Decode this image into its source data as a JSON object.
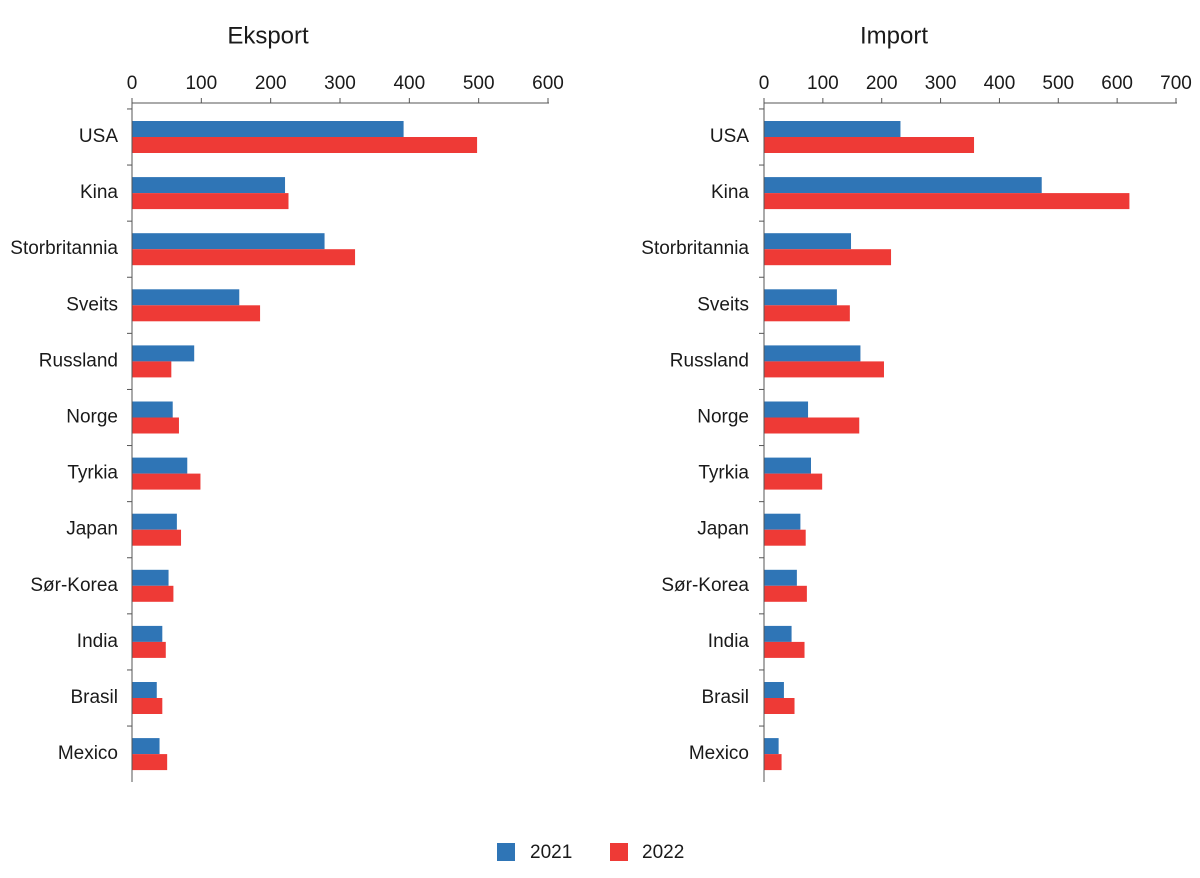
{
  "chart_data": [
    {
      "type": "bar",
      "orientation": "horizontal",
      "title": "Eksport",
      "xlim": [
        0,
        600
      ],
      "xticks": [
        0,
        100,
        200,
        300,
        400,
        500,
        600
      ],
      "tick_labels": [
        "0",
        "100",
        "200",
        "300",
        "400",
        "500",
        "600"
      ],
      "categories": [
        "USA",
        "Kina",
        "Storbritannia",
        "Sveits",
        "Russland",
        "Norge",
        "Tyrkia",
        "Japan",
        "Sør-Korea",
        "India",
        "Brasil",
        "Mexico"
      ],
      "series": [
        {
          "name": "2021",
          "color": "#2f75b6",
          "values": [
            391,
            220,
            277,
            154,
            89,
            58,
            79,
            64,
            52,
            43,
            35,
            39
          ]
        },
        {
          "name": "2022",
          "color": "#ee3a36",
          "values": [
            497,
            225,
            321,
            184,
            56,
            67,
            98,
            70,
            59,
            48,
            43,
            50
          ]
        }
      ]
    },
    {
      "type": "bar",
      "orientation": "horizontal",
      "title": "Import",
      "xlim": [
        0,
        700
      ],
      "xticks": [
        0,
        100,
        200,
        300,
        400,
        500,
        600,
        700
      ],
      "tick_labels": [
        "0",
        "100",
        "200",
        "300",
        "400",
        "500",
        "600",
        "700"
      ],
      "categories": [
        "USA",
        "Kina",
        "Storbritannia",
        "Sveits",
        "Russland",
        "Norge",
        "Tyrkia",
        "Japan",
        "Sør-Korea",
        "India",
        "Brasil",
        "Mexico"
      ],
      "series": [
        {
          "name": "2021",
          "color": "#2f75b6",
          "values": [
            231,
            471,
            147,
            123,
            163,
            74,
            79,
            61,
            55,
            46,
            33,
            24
          ]
        },
        {
          "name": "2022",
          "color": "#ee3a36",
          "values": [
            356,
            620,
            215,
            145,
            203,
            161,
            98,
            70,
            72,
            68,
            51,
            29
          ]
        }
      ]
    }
  ],
  "legend": [
    {
      "label": "2021",
      "color": "#2f75b6"
    },
    {
      "label": "2022",
      "color": "#ee3a36"
    }
  ]
}
